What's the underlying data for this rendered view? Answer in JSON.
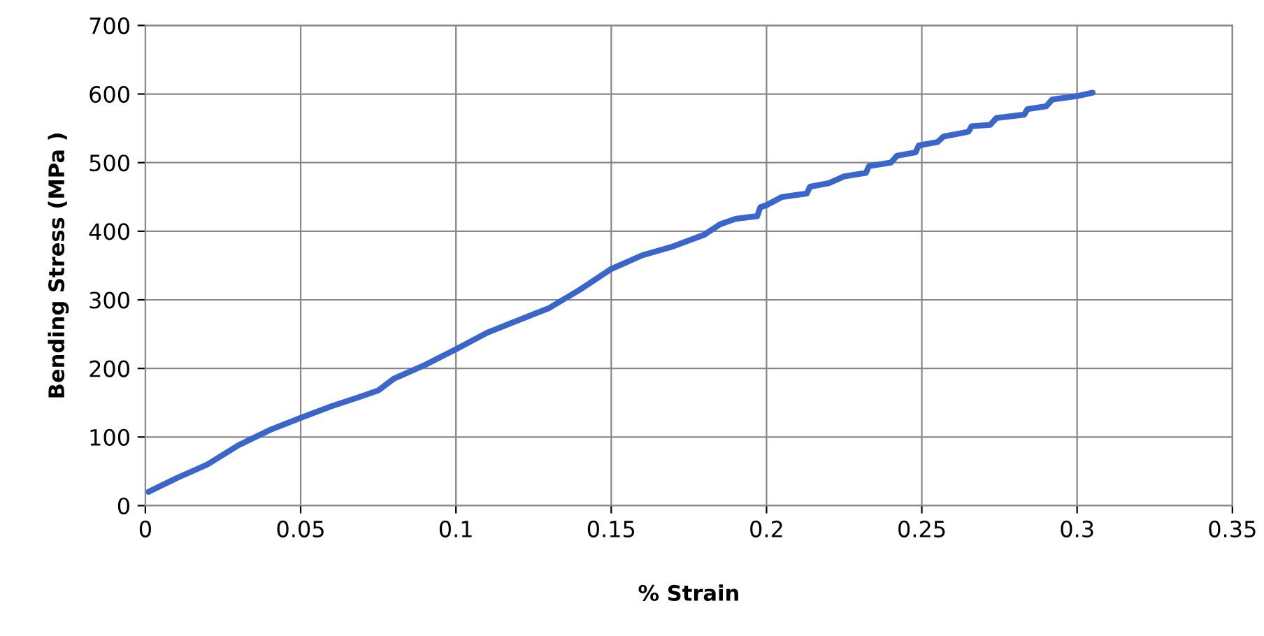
{
  "chart_data": {
    "type": "line",
    "xlabel": "% Strain",
    "ylabel": "Bending Stress (MPa )",
    "xlim": [
      0,
      0.35
    ],
    "ylim": [
      0,
      700
    ],
    "xticks": [
      0,
      0.05,
      0.1,
      0.15,
      0.2,
      0.25,
      0.3,
      0.35
    ],
    "yticks": [
      0,
      100,
      200,
      300,
      400,
      500,
      600,
      700
    ],
    "grid": true,
    "marker": "none",
    "line_style": "solid",
    "series": [
      {
        "color": "#3a66cc",
        "x": [
          0.001,
          0.01,
          0.02,
          0.03,
          0.04,
          0.05,
          0.06,
          0.07,
          0.075,
          0.08,
          0.09,
          0.1,
          0.11,
          0.12,
          0.13,
          0.14,
          0.15,
          0.16,
          0.17,
          0.18,
          0.185,
          0.19,
          0.197,
          0.198,
          0.2,
          0.205,
          0.213,
          0.214,
          0.22,
          0.225,
          0.232,
          0.233,
          0.24,
          0.242,
          0.248,
          0.249,
          0.255,
          0.257,
          0.265,
          0.266,
          0.272,
          0.274,
          0.283,
          0.284,
          0.29,
          0.292,
          0.3,
          0.305
        ],
        "values": [
          20,
          40,
          60,
          88,
          110,
          128,
          145,
          160,
          168,
          185,
          205,
          228,
          252,
          270,
          288,
          315,
          345,
          365,
          378,
          395,
          410,
          418,
          422,
          435,
          438,
          450,
          455,
          465,
          470,
          480,
          485,
          495,
          500,
          510,
          515,
          525,
          530,
          538,
          545,
          553,
          555,
          565,
          570,
          578,
          582,
          592,
          597,
          602
        ]
      }
    ]
  }
}
